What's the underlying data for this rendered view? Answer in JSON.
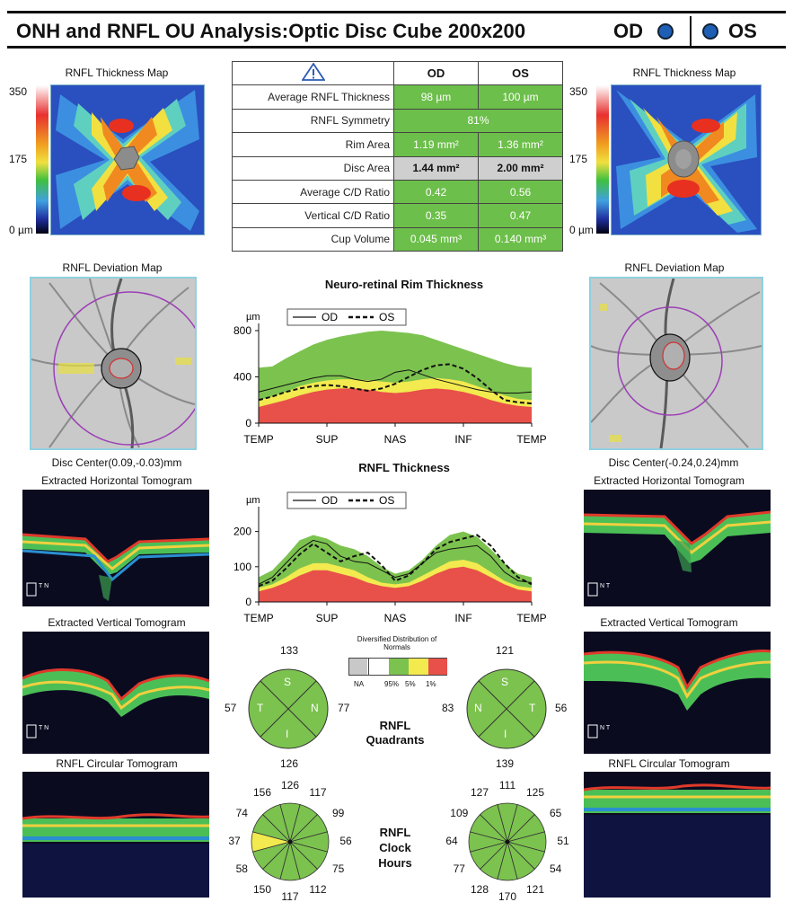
{
  "header": {
    "title": "ONH and RNFL OU Analysis:Optic Disc Cube 200x200",
    "od_label": "OD",
    "os_label": "OS"
  },
  "thickness_map": {
    "title": "RNFL Thickness Map",
    "scale_max": "350",
    "scale_mid": "175",
    "scale_min": "0 µm"
  },
  "table": {
    "warning_icon": "warning-triangle-icon",
    "col_od": "OD",
    "col_os": "OS",
    "rows": [
      {
        "label": "Average RNFL Thickness",
        "od": "98 µm",
        "os": "100 µm"
      },
      {
        "label": "RNFL Symmetry",
        "value": "81%"
      },
      {
        "label": "Rim Area",
        "od": "1.19 mm²",
        "os": "1.36 mm²"
      },
      {
        "label": "Disc Area",
        "od": "1.44 mm²",
        "os": "2.00 mm²"
      },
      {
        "label": "Average C/D Ratio",
        "od": "0.42",
        "os": "0.56"
      },
      {
        "label": "Vertical C/D Ratio",
        "od": "0.35",
        "os": "0.47"
      },
      {
        "label": "Cup Volume",
        "od": "0.045 mm³",
        "os": "0.140 mm³"
      }
    ]
  },
  "deviation_map": {
    "title": "RNFL Deviation Map",
    "od_center": "Disc Center(0.09,-0.03)mm",
    "os_center": "Disc Center(-0.24,0.24)mm"
  },
  "tomograms": {
    "horizontal": "Extracted Horizontal Tomogram",
    "vertical": "Extracted Vertical Tomogram",
    "circular": "RNFL Circular Tomogram",
    "od_h_marker": "T N",
    "os_h_marker": "N T",
    "od_v_marker": "T N",
    "os_v_marker": "N T"
  },
  "quadrants": {
    "title_line1": "RNFL",
    "title_line2": "Quadrants",
    "od": {
      "S": "133",
      "N": "77",
      "I": "126",
      "T": "57"
    },
    "os": {
      "S": "121",
      "N": "83",
      "I": "139",
      "T": "56"
    },
    "letters_od": {
      "s": "S",
      "t": "T",
      "n": "N",
      "i": "I"
    },
    "letters_os": {
      "s": "S",
      "n": "N",
      "t": "T",
      "i": "I"
    }
  },
  "distribution_legend": {
    "title": "Diversified Distribution of Normals",
    "labels": [
      "NA",
      "95%",
      "5%",
      "1%"
    ],
    "colors": [
      "#c8c8c8",
      "#ffffff",
      "#7cc24f",
      "#f2ea4f",
      "#e8504a"
    ]
  },
  "clock_hours": {
    "title_line1": "RNFL",
    "title_line2": "Clock",
    "title_line3": "Hours",
    "od": [
      "126",
      "117",
      "99",
      "56",
      "75",
      "112",
      "117",
      "150",
      "58",
      "37",
      "74",
      "156"
    ],
    "os": [
      "111",
      "125",
      "65",
      "51",
      "54",
      "121",
      "170",
      "128",
      "77",
      "64",
      "109",
      "127"
    ]
  },
  "colors": {
    "green": "#7cc24f",
    "yellow": "#f2ea4f",
    "red": "#e8504a",
    "panel_border": "#8fd0de",
    "eye_dot": "#1e5fb5"
  },
  "chart_data": [
    {
      "type": "area",
      "title": "Neuro-retinal Rim Thickness",
      "ylabel": "µm",
      "ylim": [
        0,
        800
      ],
      "yticks": [
        "800",
        "400",
        "0"
      ],
      "xticks": [
        "TEMP",
        "SUP",
        "NAS",
        "INF",
        "TEMP"
      ],
      "legend": [
        "OD",
        "OS"
      ],
      "x": [
        0,
        0.05,
        0.1,
        0.15,
        0.2,
        0.25,
        0.3,
        0.35,
        0.4,
        0.45,
        0.5,
        0.55,
        0.6,
        0.65,
        0.7,
        0.75,
        0.8,
        0.85,
        0.9,
        0.95,
        1.0
      ],
      "normal_95": [
        480,
        490,
        560,
        620,
        680,
        720,
        750,
        770,
        790,
        800,
        790,
        780,
        760,
        720,
        680,
        640,
        600,
        560,
        520,
        490,
        480
      ],
      "normal_5": [
        200,
        230,
        270,
        320,
        350,
        370,
        380,
        380,
        370,
        360,
        350,
        360,
        380,
        390,
        380,
        360,
        320,
        280,
        240,
        210,
        200
      ],
      "normal_1": [
        140,
        170,
        200,
        240,
        270,
        290,
        300,
        300,
        290,
        270,
        260,
        270,
        290,
        300,
        290,
        270,
        240,
        200,
        170,
        150,
        140
      ],
      "series": [
        {
          "name": "OD",
          "values": [
            270,
            300,
            330,
            360,
            390,
            410,
            410,
            380,
            360,
            380,
            440,
            460,
            420,
            380,
            350,
            320,
            290,
            270,
            260,
            260,
            270
          ]
        },
        {
          "name": "OS",
          "values": [
            200,
            230,
            270,
            300,
            320,
            330,
            320,
            300,
            280,
            300,
            340,
            400,
            460,
            500,
            510,
            470,
            390,
            290,
            200,
            180,
            170
          ]
        }
      ]
    },
    {
      "type": "area",
      "title": "RNFL Thickness",
      "ylabel": "µm",
      "ylim": [
        0,
        250
      ],
      "yticks": [
        "200",
        "100",
        "0"
      ],
      "xticks": [
        "TEMP",
        "SUP",
        "NAS",
        "INF",
        "TEMP"
      ],
      "legend": [
        "OD",
        "OS"
      ],
      "x": [
        0,
        0.05,
        0.1,
        0.15,
        0.2,
        0.25,
        0.3,
        0.35,
        0.4,
        0.45,
        0.5,
        0.55,
        0.6,
        0.65,
        0.7,
        0.75,
        0.8,
        0.85,
        0.9,
        0.95,
        1.0
      ],
      "normal_95": [
        70,
        90,
        130,
        175,
        190,
        180,
        160,
        150,
        130,
        100,
        80,
        90,
        120,
        160,
        190,
        200,
        185,
        150,
        110,
        80,
        70
      ],
      "normal_5": [
        40,
        50,
        70,
        95,
        110,
        110,
        100,
        90,
        70,
        55,
        50,
        55,
        75,
        95,
        115,
        120,
        110,
        85,
        60,
        45,
        40
      ],
      "normal_1": [
        30,
        40,
        55,
        75,
        90,
        90,
        80,
        70,
        55,
        45,
        40,
        45,
        60,
        80,
        95,
        100,
        90,
        70,
        50,
        35,
        30
      ],
      "series": [
        {
          "name": "OD",
          "values": [
            50,
            70,
            110,
            150,
            175,
            165,
            130,
            115,
            110,
            90,
            70,
            80,
            110,
            140,
            150,
            155,
            160,
            130,
            85,
            60,
            55
          ]
        },
        {
          "name": "OS",
          "values": [
            45,
            60,
            95,
            135,
            165,
            140,
            115,
            130,
            140,
            105,
            60,
            75,
            110,
            150,
            170,
            180,
            190,
            160,
            110,
            70,
            50
          ]
        }
      ]
    }
  ]
}
